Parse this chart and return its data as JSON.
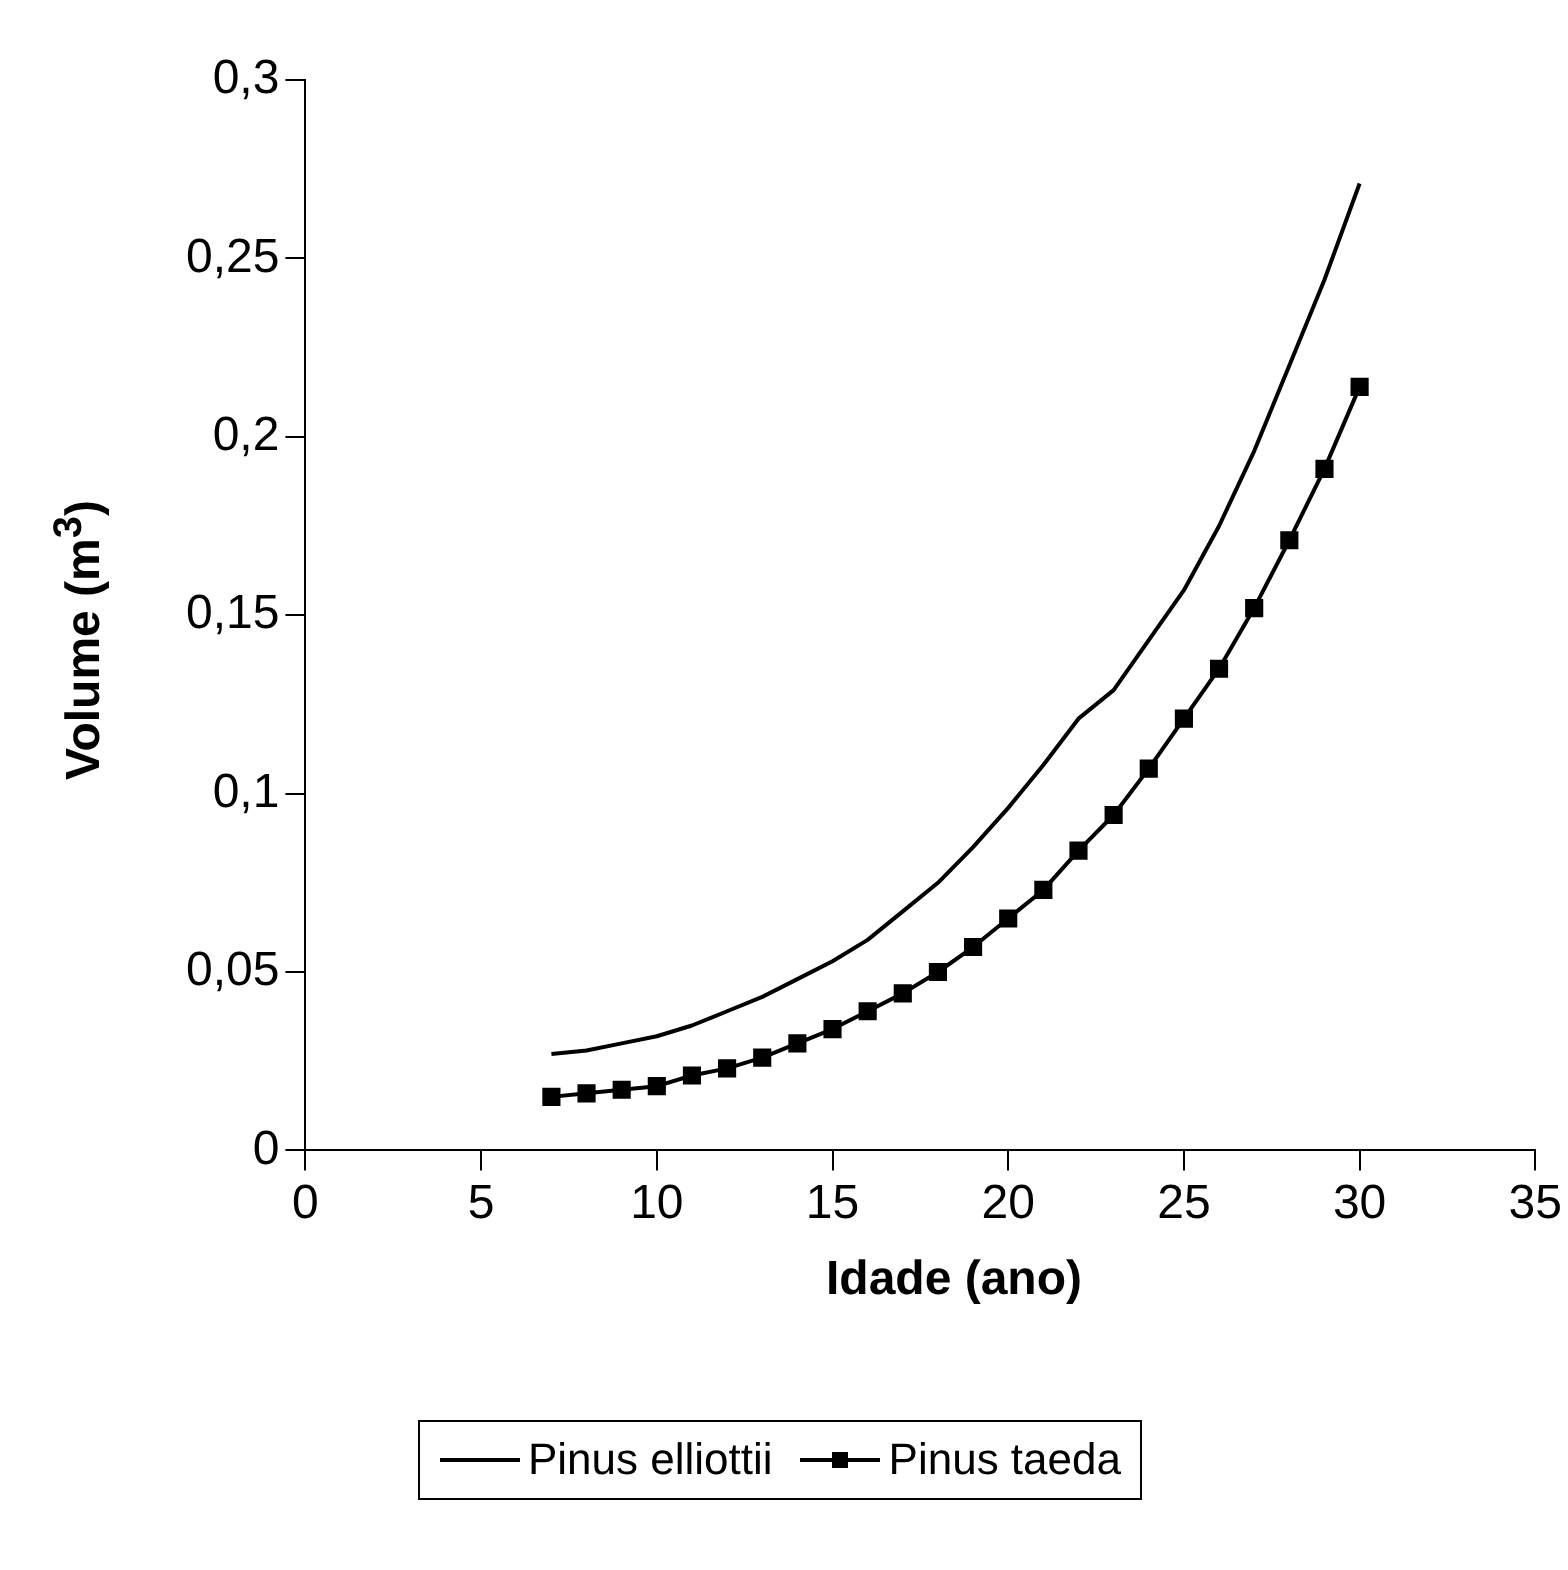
{
  "chart_data": {
    "type": "line",
    "xlabel": "Idade (ano)",
    "ylabel": "Volume (m$^{3}$)",
    "x": [
      7,
      8,
      9,
      10,
      11,
      12,
      13,
      14,
      15,
      16,
      17,
      18,
      19,
      20,
      21,
      22,
      23,
      24,
      25,
      26,
      27,
      28,
      29,
      30
    ],
    "series": [
      {
        "name": "Pinus elliottii",
        "color": "#000000",
        "marker": "none",
        "values": [
          0.027,
          0.028,
          0.03,
          0.032,
          0.035,
          0.039,
          0.043,
          0.048,
          0.053,
          0.059,
          0.067,
          0.075,
          0.085,
          0.096,
          0.108,
          0.121,
          0.129,
          0.143,
          0.157,
          0.175,
          0.196,
          0.22,
          0.244,
          0.271
        ]
      },
      {
        "name": "Pinus taeda",
        "color": "#000000",
        "marker": "square",
        "values": [
          0.015,
          0.016,
          0.017,
          0.018,
          0.021,
          0.023,
          0.026,
          0.03,
          0.034,
          0.039,
          0.044,
          0.05,
          0.057,
          0.065,
          0.073,
          0.084,
          0.094,
          0.107,
          0.121,
          0.135,
          0.152,
          0.171,
          0.191,
          0.214
        ]
      }
    ],
    "xlim": [
      0,
      35
    ],
    "xticks": [
      0,
      5,
      10,
      15,
      20,
      25,
      30,
      35
    ],
    "ylim": [
      0,
      0.3
    ],
    "yticks": [
      {
        "value": 0,
        "label": "0"
      },
      {
        "value": 0.05,
        "label": "0,05"
      },
      {
        "value": 0.1,
        "label": "0,1"
      },
      {
        "value": 0.15,
        "label": "0,15"
      },
      {
        "value": 0.2,
        "label": "0,2"
      },
      {
        "value": 0.25,
        "label": "0,25"
      },
      {
        "value": 0.3,
        "label": "0,3"
      }
    ],
    "grid": false,
    "legend": "bottom",
    "line_style": "solid"
  }
}
